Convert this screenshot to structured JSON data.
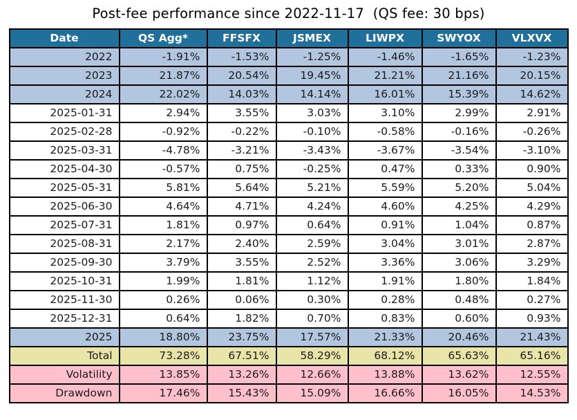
{
  "title": "Post-fee performance since 2022-11-17  (QS fee: 30 bps)",
  "colors": {
    "header_bg": "#20709B",
    "header_text": "#FFFFFF",
    "year_row_bg": "#B3C6DF",
    "month_row_bg": "#FFFFFF",
    "total_row_bg": "#E9E5A9",
    "risk_row_bg": "#FFC0CB",
    "border": "#000000",
    "text": "#1A1A1A"
  },
  "chart_data": {
    "type": "table",
    "title": "Post-fee performance since 2022-11-17  (QS fee: 30 bps)",
    "columns": [
      "Date",
      "QS Agg*",
      "FFSFX",
      "JSMEX",
      "LIWPX",
      "SWYOX",
      "VLXVX"
    ],
    "rows": [
      {
        "label": "2022",
        "style": "year",
        "values": [
          "-1.91%",
          "-1.53%",
          "-1.25%",
          "-1.46%",
          "-1.65%",
          "-1.23%"
        ]
      },
      {
        "label": "2023",
        "style": "year",
        "values": [
          "21.87%",
          "20.54%",
          "19.45%",
          "21.21%",
          "21.16%",
          "20.15%"
        ]
      },
      {
        "label": "2024",
        "style": "year",
        "values": [
          "22.02%",
          "14.03%",
          "14.14%",
          "16.01%",
          "15.39%",
          "14.62%"
        ]
      },
      {
        "label": "2025-01-31",
        "style": "month",
        "values": [
          "2.94%",
          "3.55%",
          "3.03%",
          "3.10%",
          "2.99%",
          "2.91%"
        ]
      },
      {
        "label": "2025-02-28",
        "style": "month",
        "values": [
          "-0.92%",
          "-0.22%",
          "-0.10%",
          "-0.58%",
          "-0.16%",
          "-0.26%"
        ]
      },
      {
        "label": "2025-03-31",
        "style": "month",
        "values": [
          "-4.78%",
          "-3.21%",
          "-3.43%",
          "-3.67%",
          "-3.54%",
          "-3.10%"
        ]
      },
      {
        "label": "2025-04-30",
        "style": "month",
        "values": [
          "-0.57%",
          "0.75%",
          "-0.25%",
          "0.47%",
          "0.33%",
          "0.90%"
        ]
      },
      {
        "label": "2025-05-31",
        "style": "month",
        "values": [
          "5.81%",
          "5.64%",
          "5.21%",
          "5.59%",
          "5.20%",
          "5.04%"
        ]
      },
      {
        "label": "2025-06-30",
        "style": "month",
        "values": [
          "4.64%",
          "4.71%",
          "4.24%",
          "4.60%",
          "4.25%",
          "4.29%"
        ]
      },
      {
        "label": "2025-07-31",
        "style": "month",
        "values": [
          "1.81%",
          "0.97%",
          "0.64%",
          "0.91%",
          "1.04%",
          "0.87%"
        ]
      },
      {
        "label": "2025-08-31",
        "style": "month",
        "values": [
          "2.17%",
          "2.40%",
          "2.59%",
          "3.04%",
          "3.01%",
          "2.87%"
        ]
      },
      {
        "label": "2025-09-30",
        "style": "month",
        "values": [
          "3.79%",
          "3.55%",
          "2.52%",
          "3.36%",
          "3.06%",
          "3.29%"
        ]
      },
      {
        "label": "2025-10-31",
        "style": "month",
        "values": [
          "1.99%",
          "1.81%",
          "1.12%",
          "1.91%",
          "1.80%",
          "1.84%"
        ]
      },
      {
        "label": "2025-11-30",
        "style": "month",
        "values": [
          "0.26%",
          "0.06%",
          "0.30%",
          "0.28%",
          "0.48%",
          "0.27%"
        ]
      },
      {
        "label": "2025-12-31",
        "style": "month",
        "values": [
          "0.64%",
          "1.82%",
          "0.70%",
          "0.83%",
          "0.60%",
          "0.93%"
        ]
      },
      {
        "label": "2025",
        "style": "year",
        "values": [
          "18.80%",
          "23.75%",
          "17.57%",
          "21.33%",
          "20.46%",
          "21.43%"
        ]
      },
      {
        "label": "Total",
        "style": "total",
        "values": [
          "73.28%",
          "67.51%",
          "58.29%",
          "68.12%",
          "65.63%",
          "65.16%"
        ]
      },
      {
        "label": "Volatility",
        "style": "risk",
        "values": [
          "13.85%",
          "13.26%",
          "12.66%",
          "13.88%",
          "13.62%",
          "12.55%"
        ]
      },
      {
        "label": "Drawdown",
        "style": "risk",
        "values": [
          "17.46%",
          "15.43%",
          "15.09%",
          "16.66%",
          "16.05%",
          "14.53%"
        ]
      }
    ]
  }
}
